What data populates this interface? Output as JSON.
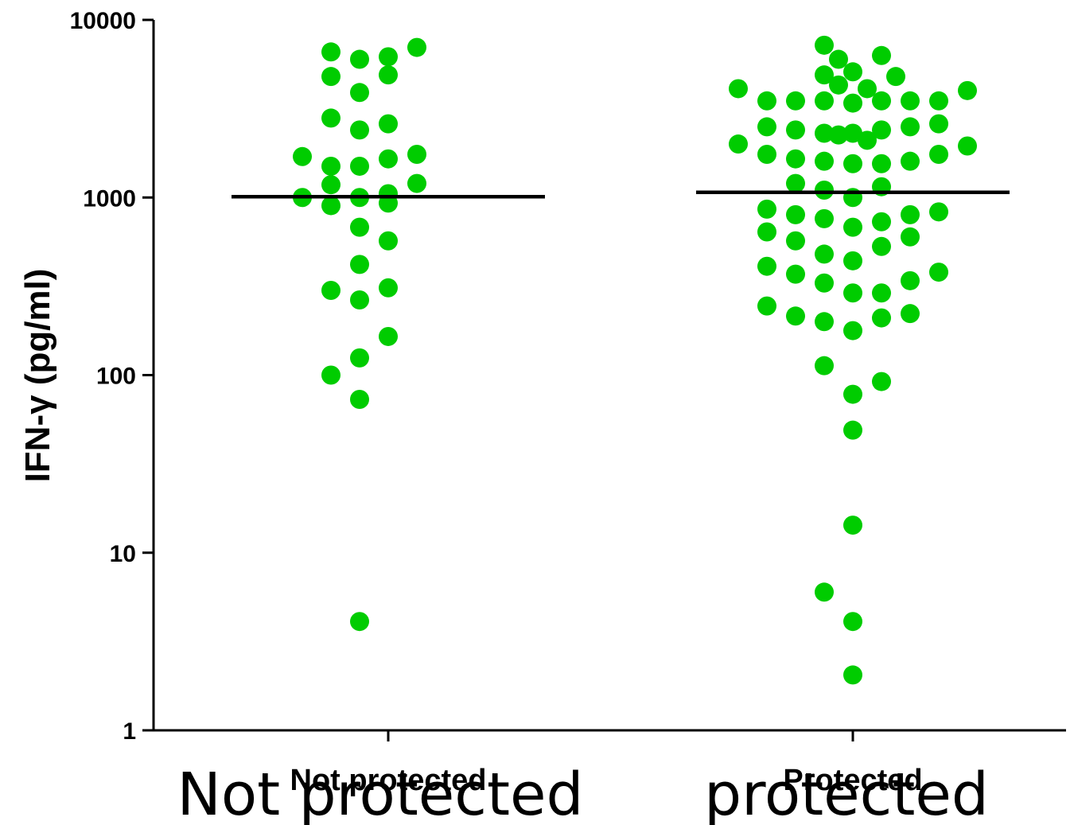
{
  "chart_data": {
    "type": "scatter",
    "ylabel": "IFN-γ (pg/ml)",
    "yscale": "log",
    "ylim": [
      1,
      10000
    ],
    "yticks": [
      {
        "value": 1,
        "label": "1"
      },
      {
        "value": 10,
        "label": "10"
      },
      {
        "value": 100,
        "label": "100"
      },
      {
        "value": 1000,
        "label": "1000"
      },
      {
        "value": 10000,
        "label": "10000"
      }
    ],
    "categories": [
      "Not protected",
      "Protected"
    ],
    "categories_secondary": [
      "Not protected",
      "protected"
    ],
    "marker_color": "#00cc00",
    "median_line_color": "#000000",
    "grid": false,
    "series": [
      {
        "category": "Not protected",
        "median": 1010,
        "points": [
          {
            "x": -2,
            "y": 6600
          },
          {
            "x": -1,
            "y": 6000
          },
          {
            "x": 0,
            "y": 6200
          },
          {
            "x": 1,
            "y": 7000
          },
          {
            "x": -2,
            "y": 4800
          },
          {
            "x": 0,
            "y": 4900
          },
          {
            "x": -1,
            "y": 3900
          },
          {
            "x": -2,
            "y": 2800
          },
          {
            "x": -1,
            "y": 2400
          },
          {
            "x": 0,
            "y": 2600
          },
          {
            "x": -3,
            "y": 1700
          },
          {
            "x": -2,
            "y": 1500
          },
          {
            "x": -1,
            "y": 1500
          },
          {
            "x": 0,
            "y": 1650
          },
          {
            "x": 1,
            "y": 1750
          },
          {
            "x": -2,
            "y": 1180
          },
          {
            "x": 1,
            "y": 1200
          },
          {
            "x": -3,
            "y": 1000
          },
          {
            "x": -1,
            "y": 1000
          },
          {
            "x": 0,
            "y": 1050
          },
          {
            "x": -2,
            "y": 900
          },
          {
            "x": 0,
            "y": 930
          },
          {
            "x": -1,
            "y": 680
          },
          {
            "x": 0,
            "y": 570
          },
          {
            "x": -1,
            "y": 420
          },
          {
            "x": -2,
            "y": 300
          },
          {
            "x": 0,
            "y": 310
          },
          {
            "x": -1,
            "y": 265
          },
          {
            "x": 0,
            "y": 165
          },
          {
            "x": -1,
            "y": 125
          },
          {
            "x": -2,
            "y": 100
          },
          {
            "x": -1,
            "y": 73
          },
          {
            "x": -1,
            "y": 4.1
          }
        ]
      },
      {
        "category": "Protected",
        "median": 1070,
        "points": [
          {
            "x": -1,
            "y": 7200
          },
          {
            "x": -0.5,
            "y": 6000
          },
          {
            "x": 1,
            "y": 6300
          },
          {
            "x": -1,
            "y": 4900
          },
          {
            "x": 0,
            "y": 5100
          },
          {
            "x": 1.5,
            "y": 4800
          },
          {
            "x": -0.5,
            "y": 4300
          },
          {
            "x": 0.5,
            "y": 4100
          },
          {
            "x": -4,
            "y": 4100
          },
          {
            "x": 4,
            "y": 4000
          },
          {
            "x": -3,
            "y": 3500
          },
          {
            "x": -2,
            "y": 3500
          },
          {
            "x": -1,
            "y": 3500
          },
          {
            "x": 0,
            "y": 3400
          },
          {
            "x": 1,
            "y": 3500
          },
          {
            "x": 2,
            "y": 3500
          },
          {
            "x": 3,
            "y": 3500
          },
          {
            "x": -3,
            "y": 2500
          },
          {
            "x": -2,
            "y": 2400
          },
          {
            "x": -1,
            "y": 2300
          },
          {
            "x": -0.5,
            "y": 2250
          },
          {
            "x": 0,
            "y": 2300
          },
          {
            "x": 0.5,
            "y": 2100
          },
          {
            "x": 1,
            "y": 2400
          },
          {
            "x": 2,
            "y": 2500
          },
          {
            "x": 3,
            "y": 2600
          },
          {
            "x": -4,
            "y": 2000
          },
          {
            "x": 4,
            "y": 1950
          },
          {
            "x": -3,
            "y": 1750
          },
          {
            "x": -2,
            "y": 1650
          },
          {
            "x": -1,
            "y": 1600
          },
          {
            "x": 0,
            "y": 1550
          },
          {
            "x": 1,
            "y": 1550
          },
          {
            "x": 2,
            "y": 1600
          },
          {
            "x": 3,
            "y": 1750
          },
          {
            "x": -2,
            "y": 1200
          },
          {
            "x": -1,
            "y": 1100
          },
          {
            "x": 0,
            "y": 1000
          },
          {
            "x": 1,
            "y": 1150
          },
          {
            "x": -3,
            "y": 860
          },
          {
            "x": -2,
            "y": 800
          },
          {
            "x": -1,
            "y": 760
          },
          {
            "x": 0,
            "y": 680
          },
          {
            "x": 1,
            "y": 730
          },
          {
            "x": 2,
            "y": 800
          },
          {
            "x": 3,
            "y": 830
          },
          {
            "x": -3,
            "y": 640
          },
          {
            "x": -2,
            "y": 570
          },
          {
            "x": 2,
            "y": 600
          },
          {
            "x": 1,
            "y": 530
          },
          {
            "x": -1,
            "y": 480
          },
          {
            "x": 0,
            "y": 440
          },
          {
            "x": -3,
            "y": 410
          },
          {
            "x": -2,
            "y": 370
          },
          {
            "x": 3,
            "y": 380
          },
          {
            "x": -1,
            "y": 330
          },
          {
            "x": 2,
            "y": 340
          },
          {
            "x": 0,
            "y": 290
          },
          {
            "x": 1,
            "y": 290
          },
          {
            "x": -3,
            "y": 245
          },
          {
            "x": -2,
            "y": 215
          },
          {
            "x": -1,
            "y": 200
          },
          {
            "x": 0,
            "y": 178
          },
          {
            "x": 1,
            "y": 210
          },
          {
            "x": 2,
            "y": 222
          },
          {
            "x": -1,
            "y": 113
          },
          {
            "x": 1,
            "y": 92
          },
          {
            "x": 0,
            "y": 78
          },
          {
            "x": 0,
            "y": 49
          },
          {
            "x": 0,
            "y": 14.3
          },
          {
            "x": -1,
            "y": 6.0
          },
          {
            "x": 0,
            "y": 4.1
          },
          {
            "x": 0,
            "y": 2.05
          }
        ]
      }
    ]
  }
}
